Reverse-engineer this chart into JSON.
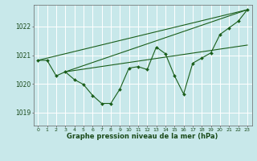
{
  "bg_color": "#c8e8ea",
  "grid_color": "#b0d8da",
  "line_color": "#1a5e1a",
  "xlabel": "Graphe pression niveau de la mer (hPa)",
  "xlim": [
    -0.5,
    23.5
  ],
  "ylim": [
    1018.55,
    1022.75
  ],
  "yticks": [
    1019,
    1020,
    1021,
    1022
  ],
  "xticks": [
    0,
    1,
    2,
    3,
    4,
    5,
    6,
    7,
    8,
    9,
    10,
    11,
    12,
    13,
    14,
    15,
    16,
    17,
    18,
    19,
    20,
    21,
    22,
    23
  ],
  "main_series": [
    1020.82,
    1020.82,
    1020.28,
    1020.42,
    1020.15,
    1019.98,
    1019.6,
    1019.32,
    1019.32,
    1019.82,
    1020.55,
    1020.6,
    1020.5,
    1021.28,
    1021.05,
    1020.28,
    1019.65,
    1020.72,
    1020.9,
    1021.08,
    1021.72,
    1021.95,
    1022.18,
    1022.58
  ],
  "trend1_x": [
    0,
    23
  ],
  "trend1_y": [
    1020.82,
    1022.58
  ],
  "trend2_x": [
    3,
    23
  ],
  "trend2_y": [
    1020.42,
    1022.58
  ],
  "trend3_x": [
    3,
    23
  ],
  "trend3_y": [
    1020.42,
    1021.35
  ]
}
